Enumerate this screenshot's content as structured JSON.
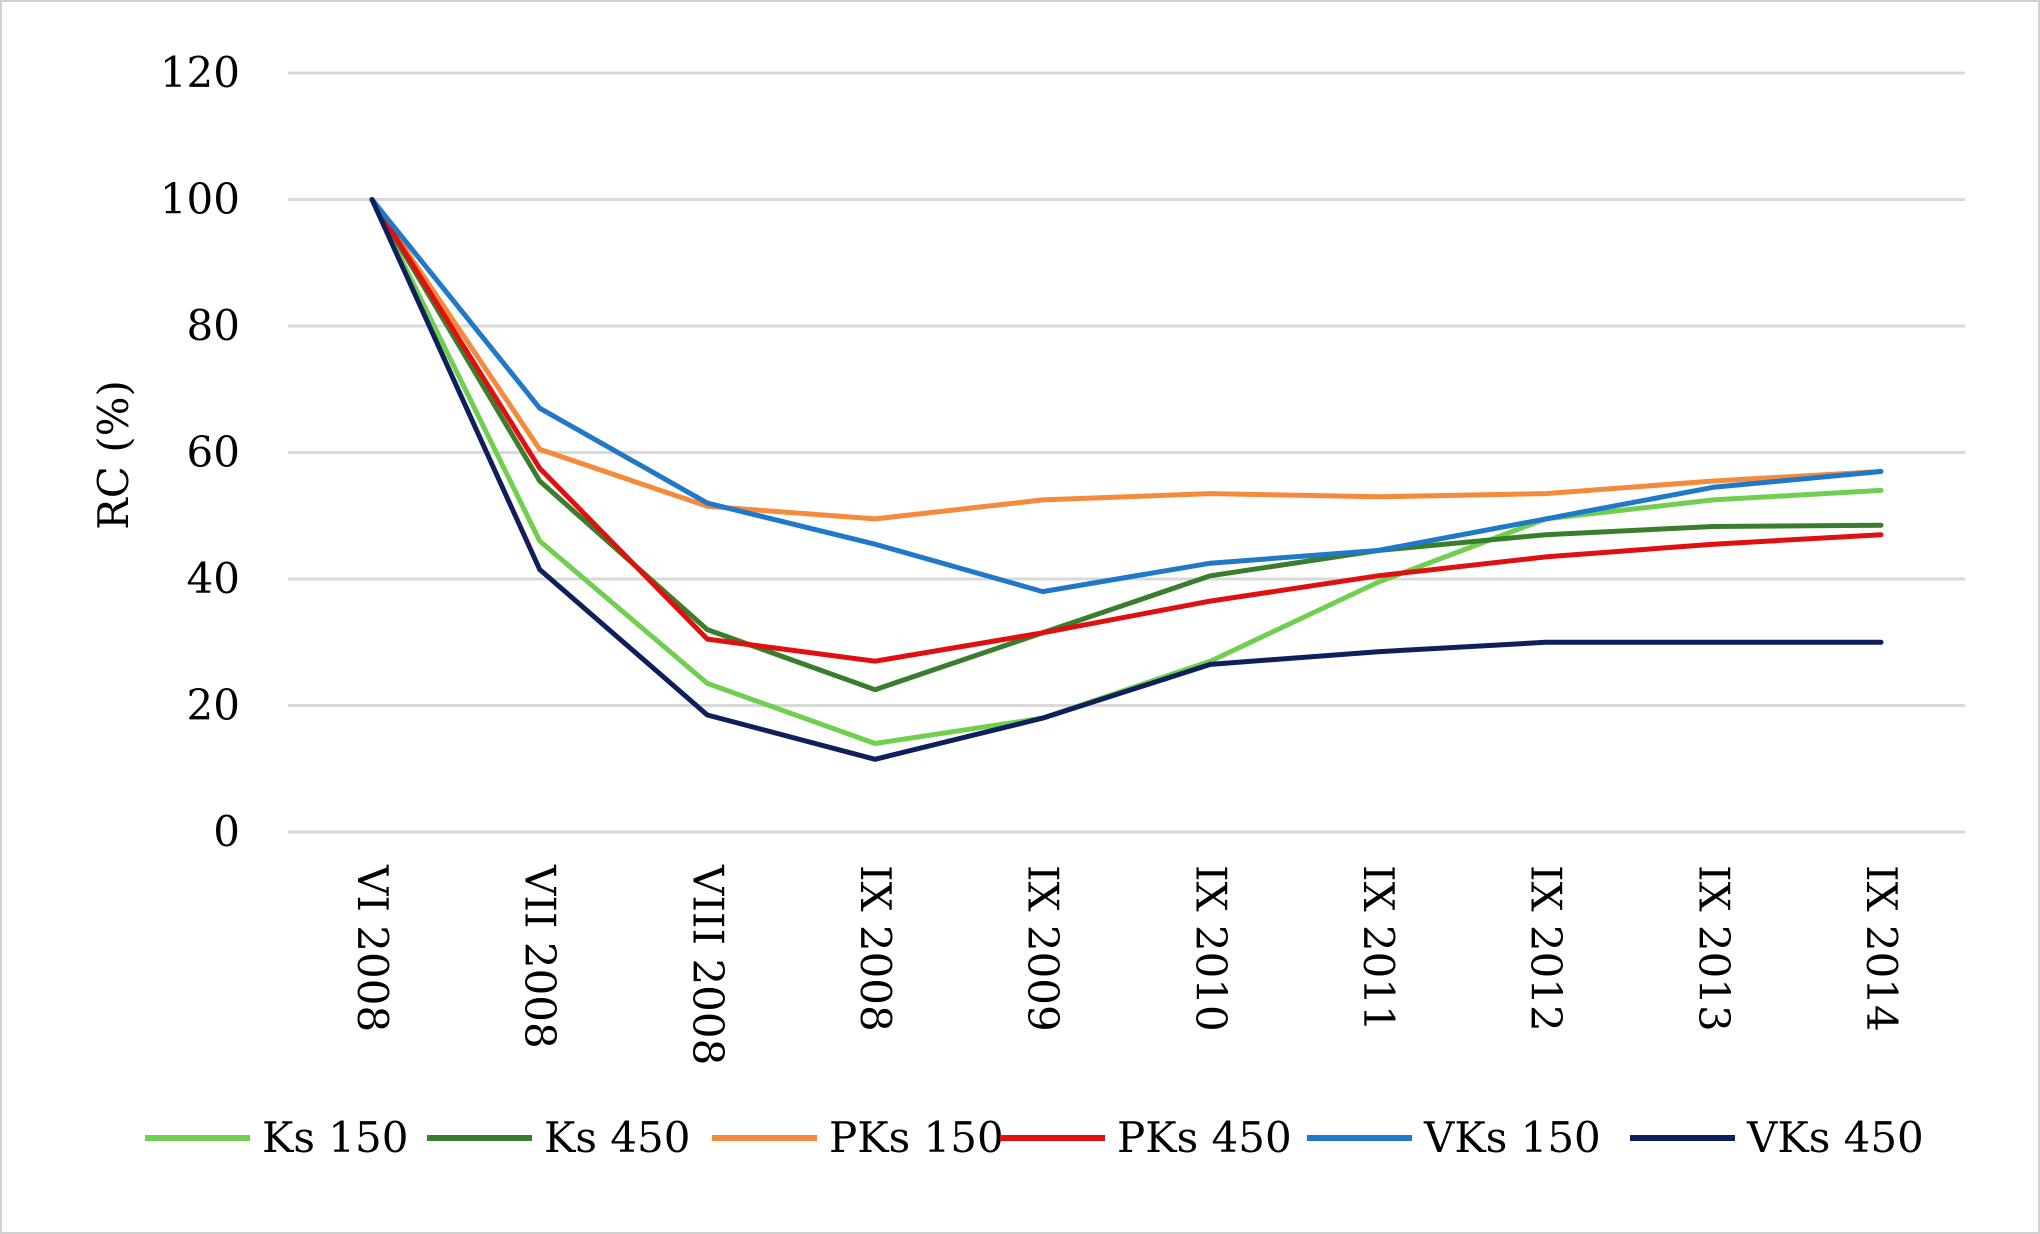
{
  "chart_data": {
    "type": "line",
    "title": "",
    "xlabel": "",
    "ylabel": "RC (%)",
    "ylim": [
      0,
      120
    ],
    "yticks": [
      0,
      20,
      40,
      60,
      80,
      100,
      120
    ],
    "grid": true,
    "legend_position": "bottom",
    "categories": [
      "VI 2008",
      "VII 2008",
      "VIII 2008",
      "IX 2008",
      "IX 2009",
      "IX 2010",
      "IX 2011",
      "IX 2012",
      "IX 2013",
      "IX 2014"
    ],
    "series": [
      {
        "name": "Ks 150",
        "color": "#70cf4f",
        "values": [
          100,
          46,
          23.5,
          14,
          18,
          27,
          39.5,
          49.5,
          52.5,
          54
        ]
      },
      {
        "name": "Ks 450",
        "color": "#3a7d2c",
        "values": [
          100,
          55.5,
          32,
          22.5,
          31.5,
          40.5,
          44.5,
          47,
          48.3,
          48.5
        ]
      },
      {
        "name": "PKs 150",
        "color": "#f58a3c",
        "values": [
          100,
          60.5,
          51.5,
          49.5,
          52.5,
          53.5,
          53,
          53.5,
          55.5,
          57
        ]
      },
      {
        "name": "PKs 450",
        "color": "#e01010",
        "values": [
          100,
          57.5,
          30.5,
          27,
          31.5,
          36.5,
          40.5,
          43.5,
          45.5,
          47
        ]
      },
      {
        "name": "VKs 150",
        "color": "#1f78c8",
        "values": [
          100,
          67,
          52,
          45.5,
          38,
          42.5,
          44.5,
          49.5,
          54.5,
          57
        ]
      },
      {
        "name": "VKs 450",
        "color": "#0f1f5c",
        "values": [
          100,
          41.5,
          18.5,
          11.5,
          18,
          26.5,
          28.5,
          30,
          30,
          30
        ]
      }
    ]
  }
}
